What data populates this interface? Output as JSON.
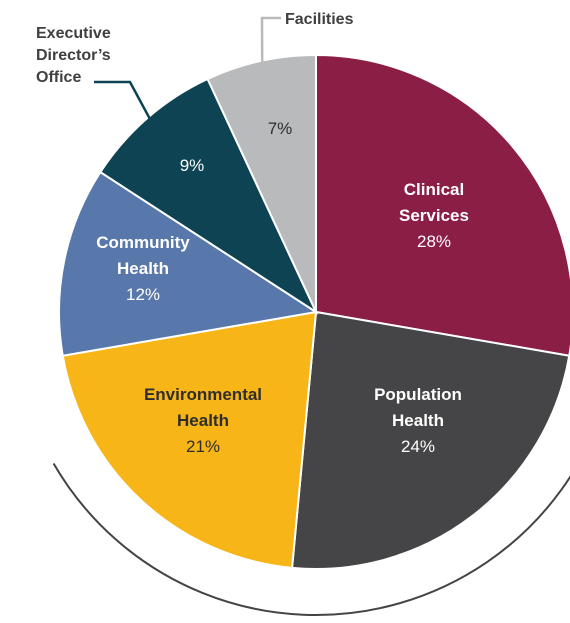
{
  "chart_data": {
    "type": "pie",
    "title": "",
    "slices": [
      {
        "name_lines": [
          "Clinical",
          "Services"
        ],
        "value": 28,
        "label": "28%",
        "color": "#8b1e44",
        "text_color": "#ffffff"
      },
      {
        "name_lines": [
          "Population",
          "Health"
        ],
        "value": 24,
        "label": "24%",
        "color": "#454547",
        "text_color": "#ffffff"
      },
      {
        "name_lines": [
          "Environmental",
          "Health"
        ],
        "value": 21,
        "label": "21%",
        "color": "#f7b518",
        "text_color": "#2e2e2e"
      },
      {
        "name_lines": [
          "Community",
          "Health"
        ],
        "value": 12,
        "label": "12%",
        "color": "#5877aa",
        "text_color": "#ffffff"
      },
      {
        "name_lines": [],
        "value": 9,
        "label": "9%",
        "color": "#0d4352",
        "text_color": "#ffffff"
      },
      {
        "name_lines": [],
        "value": 7,
        "label": "7%",
        "color": "#b9babc",
        "text_color": "#2e2e2e"
      }
    ],
    "callouts": [
      {
        "slice": 4,
        "lines": [
          "Executive",
          "Director’s",
          "Office"
        ]
      },
      {
        "slice": 5,
        "lines": [
          "Facilities"
        ]
      }
    ],
    "outer_arc_color": "#444444"
  }
}
